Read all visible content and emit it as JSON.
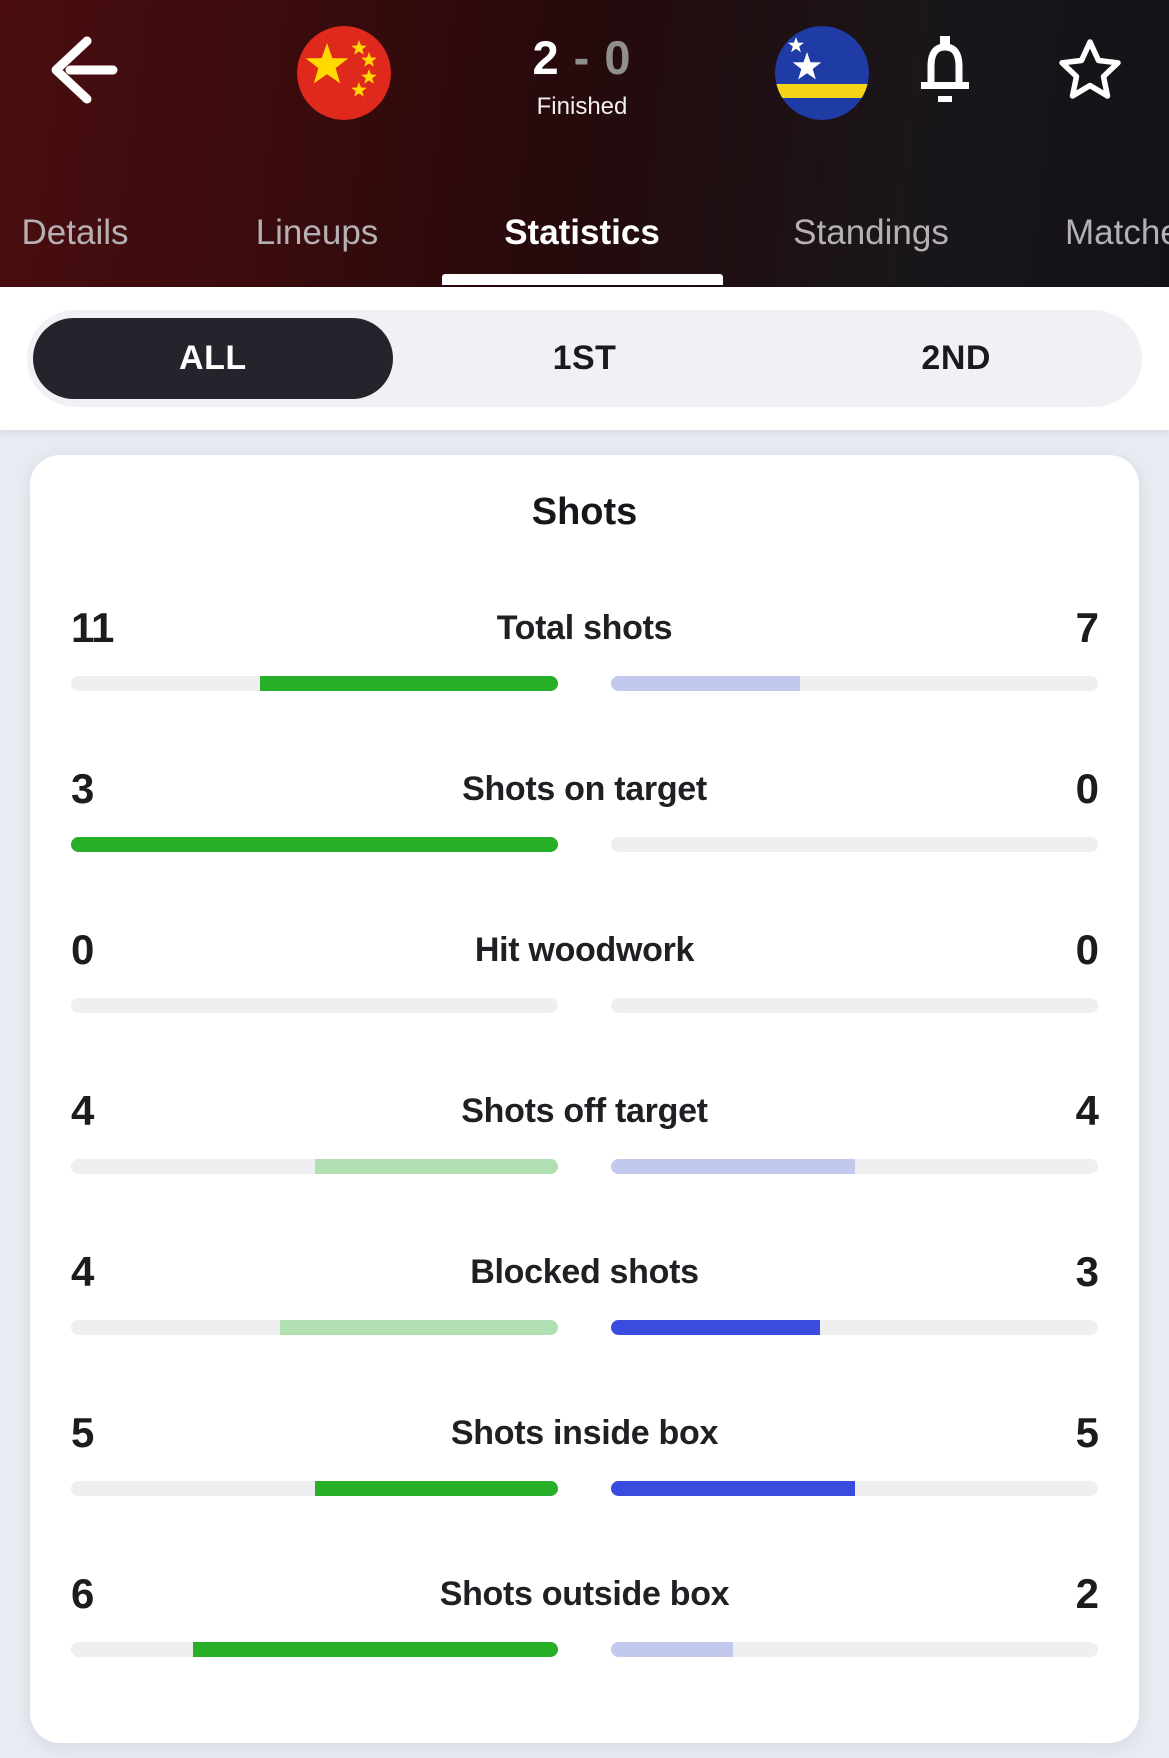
{
  "header": {
    "score": {
      "home": "2",
      "separator": "-",
      "away": "0",
      "status": "Finished"
    },
    "home_team_flag": "china-flag",
    "away_team_flag": "curacao-flag",
    "colors": {
      "background_left": "#4a0e10",
      "background_right": "#131317"
    }
  },
  "tabs": [
    {
      "label": "Details",
      "active": false
    },
    {
      "label": "Lineups",
      "active": false
    },
    {
      "label": "Statistics",
      "active": true
    },
    {
      "label": "Standings",
      "active": false
    },
    {
      "label": "Matches",
      "active": false
    }
  ],
  "period_segments": [
    {
      "label": "ALL",
      "active": true
    },
    {
      "label": "1ST",
      "active": false
    },
    {
      "label": "2ND",
      "active": false
    }
  ],
  "stats": {
    "title": "Shots",
    "bar_colors": {
      "green-bright": "#27b027",
      "green-muted": "#b0e0b1",
      "blue-bright": "#3a4be0",
      "lavender-muted": "#c3c9ee",
      "none": "transparent"
    },
    "rows": [
      {
        "label": "Total shots",
        "home": {
          "value": "11",
          "pct": 61.1,
          "tone": "green-bright"
        },
        "away": {
          "value": "7",
          "pct": 38.9,
          "tone": "lavender-muted"
        }
      },
      {
        "label": "Shots on target",
        "home": {
          "value": "3",
          "pct": 100,
          "tone": "green-bright"
        },
        "away": {
          "value": "0",
          "pct": 0,
          "tone": "none"
        }
      },
      {
        "label": "Hit woodwork",
        "home": {
          "value": "0",
          "pct": 0,
          "tone": "none"
        },
        "away": {
          "value": "0",
          "pct": 0,
          "tone": "none"
        }
      },
      {
        "label": "Shots off target",
        "home": {
          "value": "4",
          "pct": 50,
          "tone": "green-muted"
        },
        "away": {
          "value": "4",
          "pct": 50,
          "tone": "lavender-muted"
        }
      },
      {
        "label": "Blocked shots",
        "home": {
          "value": "4",
          "pct": 57.1,
          "tone": "green-muted"
        },
        "away": {
          "value": "3",
          "pct": 42.9,
          "tone": "blue-bright"
        }
      },
      {
        "label": "Shots inside box",
        "home": {
          "value": "5",
          "pct": 50,
          "tone": "green-bright"
        },
        "away": {
          "value": "5",
          "pct": 50,
          "tone": "blue-bright"
        }
      },
      {
        "label": "Shots outside box",
        "home": {
          "value": "6",
          "pct": 75,
          "tone": "green-bright"
        },
        "away": {
          "value": "2",
          "pct": 25,
          "tone": "lavender-muted"
        }
      }
    ]
  }
}
